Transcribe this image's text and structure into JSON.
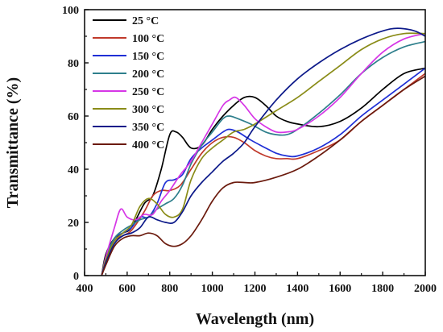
{
  "chart_data": {
    "type": "line",
    "title": "",
    "xlabel": "Wavelength (nm)",
    "ylabel": "Transmittance (%)",
    "xlim": [
      400,
      2000
    ],
    "ylim": [
      0,
      100
    ],
    "xticks": [
      400,
      600,
      800,
      1000,
      1200,
      1400,
      1600,
      1800,
      2000
    ],
    "yticks": [
      0,
      20,
      40,
      60,
      80,
      100
    ],
    "grid": false,
    "legend_position": "top-left",
    "series": [
      {
        "name": "25 °C",
        "color": "#000000",
        "points": [
          [
            480,
            0
          ],
          [
            500,
            8
          ],
          [
            540,
            14
          ],
          [
            580,
            16
          ],
          [
            620,
            18
          ],
          [
            680,
            27
          ],
          [
            720,
            30
          ],
          [
            760,
            40
          ],
          [
            800,
            53
          ],
          [
            830,
            54
          ],
          [
            860,
            52
          ],
          [
            900,
            48
          ],
          [
            950,
            49
          ],
          [
            1000,
            55
          ],
          [
            1050,
            60
          ],
          [
            1100,
            64
          ],
          [
            1150,
            67
          ],
          [
            1200,
            67
          ],
          [
            1250,
            64
          ],
          [
            1300,
            60
          ],
          [
            1350,
            58
          ],
          [
            1400,
            57
          ],
          [
            1500,
            56
          ],
          [
            1600,
            58
          ],
          [
            1700,
            63
          ],
          [
            1800,
            70
          ],
          [
            1900,
            76
          ],
          [
            2000,
            78
          ]
        ]
      },
      {
        "name": "100 °C",
        "color": "#c0392b",
        "points": [
          [
            480,
            0
          ],
          [
            500,
            6
          ],
          [
            540,
            13
          ],
          [
            580,
            15
          ],
          [
            620,
            17
          ],
          [
            680,
            24
          ],
          [
            720,
            30
          ],
          [
            760,
            32
          ],
          [
            800,
            32
          ],
          [
            850,
            34
          ],
          [
            900,
            40
          ],
          [
            950,
            46
          ],
          [
            1000,
            50
          ],
          [
            1050,
            52
          ],
          [
            1100,
            52
          ],
          [
            1150,
            50
          ],
          [
            1200,
            47
          ],
          [
            1250,
            45
          ],
          [
            1300,
            44
          ],
          [
            1350,
            44
          ],
          [
            1400,
            44
          ],
          [
            1500,
            47
          ],
          [
            1600,
            51
          ],
          [
            1700,
            58
          ],
          [
            1800,
            64
          ],
          [
            1900,
            70
          ],
          [
            2000,
            76
          ]
        ]
      },
      {
        "name": "150 °C",
        "color": "#1f2fd6",
        "points": [
          [
            480,
            0
          ],
          [
            500,
            6
          ],
          [
            540,
            14
          ],
          [
            580,
            16
          ],
          [
            620,
            18
          ],
          [
            660,
            22
          ],
          [
            700,
            22
          ],
          [
            740,
            27
          ],
          [
            780,
            35
          ],
          [
            820,
            36
          ],
          [
            860,
            38
          ],
          [
            900,
            44
          ],
          [
            950,
            48
          ],
          [
            1000,
            51
          ],
          [
            1050,
            54
          ],
          [
            1080,
            55
          ],
          [
            1120,
            54
          ],
          [
            1180,
            51
          ],
          [
            1250,
            48
          ],
          [
            1300,
            46
          ],
          [
            1350,
            45
          ],
          [
            1400,
            45
          ],
          [
            1500,
            48
          ],
          [
            1600,
            53
          ],
          [
            1700,
            60
          ],
          [
            1800,
            66
          ],
          [
            1900,
            72
          ],
          [
            2000,
            78
          ]
        ]
      },
      {
        "name": "200 °C",
        "color": "#2e7f8c",
        "points": [
          [
            480,
            0
          ],
          [
            500,
            7
          ],
          [
            540,
            14
          ],
          [
            580,
            17
          ],
          [
            620,
            19
          ],
          [
            660,
            21
          ],
          [
            700,
            22
          ],
          [
            740,
            25
          ],
          [
            780,
            27
          ],
          [
            820,
            29
          ],
          [
            860,
            34
          ],
          [
            900,
            42
          ],
          [
            950,
            49
          ],
          [
            1000,
            54
          ],
          [
            1050,
            59
          ],
          [
            1080,
            60
          ],
          [
            1120,
            59
          ],
          [
            1180,
            57
          ],
          [
            1250,
            54
          ],
          [
            1300,
            53
          ],
          [
            1350,
            53
          ],
          [
            1400,
            55
          ],
          [
            1500,
            61
          ],
          [
            1600,
            68
          ],
          [
            1700,
            76
          ],
          [
            1800,
            82
          ],
          [
            1900,
            86
          ],
          [
            2000,
            88
          ]
        ]
      },
      {
        "name": "250 °C",
        "color": "#d636e6",
        "points": [
          [
            480,
            0
          ],
          [
            500,
            7
          ],
          [
            540,
            18
          ],
          [
            570,
            25
          ],
          [
            600,
            22
          ],
          [
            640,
            21
          ],
          [
            680,
            23
          ],
          [
            720,
            23
          ],
          [
            760,
            28
          ],
          [
            800,
            32
          ],
          [
            850,
            38
          ],
          [
            900,
            43
          ],
          [
            950,
            50
          ],
          [
            1000,
            57
          ],
          [
            1050,
            64
          ],
          [
            1080,
            66
          ],
          [
            1110,
            67
          ],
          [
            1150,
            64
          ],
          [
            1200,
            59
          ],
          [
            1250,
            56
          ],
          [
            1300,
            54
          ],
          [
            1350,
            54
          ],
          [
            1400,
            55
          ],
          [
            1500,
            60
          ],
          [
            1600,
            67
          ],
          [
            1700,
            76
          ],
          [
            1800,
            84
          ],
          [
            1900,
            89
          ],
          [
            2000,
            91
          ]
        ]
      },
      {
        "name": "300 °C",
        "color": "#8a8c18",
        "points": [
          [
            480,
            0
          ],
          [
            500,
            6
          ],
          [
            540,
            13
          ],
          [
            580,
            16
          ],
          [
            620,
            19
          ],
          [
            660,
            26
          ],
          [
            700,
            29
          ],
          [
            740,
            27
          ],
          [
            780,
            23
          ],
          [
            820,
            22
          ],
          [
            860,
            25
          ],
          [
            900,
            36
          ],
          [
            950,
            44
          ],
          [
            1000,
            48
          ],
          [
            1050,
            51
          ],
          [
            1100,
            54
          ],
          [
            1150,
            55
          ],
          [
            1200,
            57
          ],
          [
            1300,
            62
          ],
          [
            1400,
            67
          ],
          [
            1500,
            73
          ],
          [
            1600,
            79
          ],
          [
            1700,
            85
          ],
          [
            1800,
            89
          ],
          [
            1900,
            91
          ],
          [
            2000,
            91
          ]
        ]
      },
      {
        "name": "350 °C",
        "color": "#0d1a8a",
        "points": [
          [
            480,
            0
          ],
          [
            500,
            5
          ],
          [
            540,
            12
          ],
          [
            580,
            15
          ],
          [
            620,
            16
          ],
          [
            660,
            18
          ],
          [
            700,
            22
          ],
          [
            740,
            21
          ],
          [
            780,
            20
          ],
          [
            820,
            20
          ],
          [
            860,
            24
          ],
          [
            900,
            30
          ],
          [
            950,
            35
          ],
          [
            1000,
            39
          ],
          [
            1050,
            43
          ],
          [
            1100,
            46
          ],
          [
            1150,
            50
          ],
          [
            1200,
            56
          ],
          [
            1300,
            66
          ],
          [
            1400,
            74
          ],
          [
            1500,
            80
          ],
          [
            1600,
            85
          ],
          [
            1700,
            89
          ],
          [
            1800,
            92
          ],
          [
            1870,
            93
          ],
          [
            1950,
            92
          ],
          [
            2000,
            90
          ]
        ]
      },
      {
        "name": "400 °C",
        "color": "#6b1a0d",
        "points": [
          [
            480,
            0
          ],
          [
            500,
            4
          ],
          [
            540,
            11
          ],
          [
            580,
            14
          ],
          [
            620,
            15
          ],
          [
            660,
            15
          ],
          [
            700,
            16
          ],
          [
            740,
            15
          ],
          [
            780,
            12
          ],
          [
            820,
            11
          ],
          [
            860,
            12
          ],
          [
            900,
            15
          ],
          [
            950,
            21
          ],
          [
            1000,
            28
          ],
          [
            1050,
            33
          ],
          [
            1100,
            35
          ],
          [
            1150,
            35
          ],
          [
            1200,
            35
          ],
          [
            1300,
            37
          ],
          [
            1400,
            40
          ],
          [
            1500,
            45
          ],
          [
            1600,
            51
          ],
          [
            1700,
            58
          ],
          [
            1800,
            64
          ],
          [
            1900,
            70
          ],
          [
            2000,
            75
          ]
        ]
      }
    ]
  }
}
